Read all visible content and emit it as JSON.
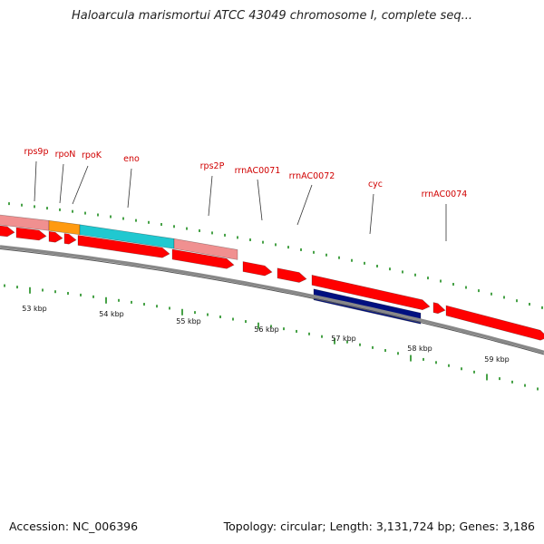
{
  "title": "Haloarcula marismortui ATCC 43049 chromosome I, complete seq...",
  "footer": {
    "accession": "Accession: NC_006396",
    "summary": "Topology: circular; Length: 3,131,724 bp; Genes: 3,186"
  },
  "colors": {
    "gene_red": "#ff0000",
    "pink": "#f09090",
    "orange": "#ff9a10",
    "cyan": "#20c8d0",
    "navy": "#001080",
    "tick_green": "#1a8a1a",
    "backbone": "#888888",
    "label_red": "#d00000"
  },
  "gene_labels": [
    "rps9p",
    "rpoN",
    "rpoK",
    "eno",
    "rps2P",
    "rrnAC0071",
    "rrnAC0072",
    "cyc",
    "rrnAC0074"
  ],
  "kbp_labels": [
    "53 kbp",
    "54 kbp",
    "55 kbp",
    "56 kbp",
    "57 kbp",
    "58 kbp",
    "59 kbp"
  ]
}
